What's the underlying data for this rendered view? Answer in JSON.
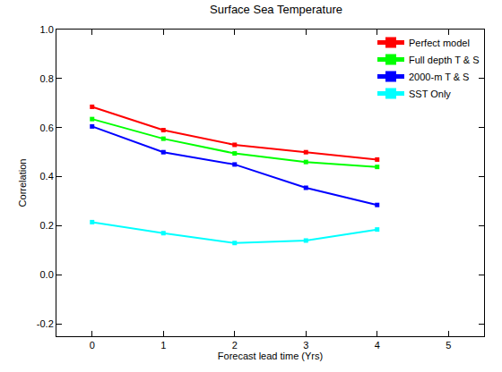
{
  "chart_data": {
    "type": "line",
    "title": "Surface Sea Temperature",
    "x_label": "Forecast lead time (Yrs)",
    "y_label": "Correlation",
    "x": [
      0,
      1,
      2,
      3,
      4
    ],
    "series": [
      {
        "name": "Perfect model",
        "color": "#ff0000",
        "marker": "square",
        "values": [
          0.685,
          0.59,
          0.53,
          0.5,
          0.47
        ]
      },
      {
        "name": "Full depth T & S",
        "color": "#00ff00",
        "marker": "square",
        "values": [
          0.635,
          0.555,
          0.495,
          0.46,
          0.44
        ]
      },
      {
        "name": "2000-m T & S",
        "color": "#0000ff",
        "marker": "square",
        "values": [
          0.605,
          0.5,
          0.45,
          0.355,
          0.285
        ]
      },
      {
        "name": "SST Only",
        "color": "#00ffff",
        "marker": "square",
        "values": [
          0.215,
          0.17,
          0.13,
          0.14,
          0.185
        ]
      }
    ],
    "xlim": [
      -0.5,
      5.5
    ],
    "xticks": [
      0,
      1,
      2,
      3,
      4,
      5
    ],
    "ylim": [
      -0.25,
      1.0
    ],
    "yticks": [
      {
        "value": -0.2,
        "label": "-0.2"
      },
      {
        "value": 0,
        "label": "0.0"
      },
      {
        "value": 0.2,
        "label": "0.2"
      },
      {
        "value": 0.4,
        "label": "0.4"
      },
      {
        "value": 0.6,
        "label": "0.6"
      },
      {
        "value": 0.8,
        "label": "0.8"
      },
      {
        "value": 1,
        "label": "1.0"
      }
    ],
    "grid": false,
    "legend": "top-right"
  }
}
